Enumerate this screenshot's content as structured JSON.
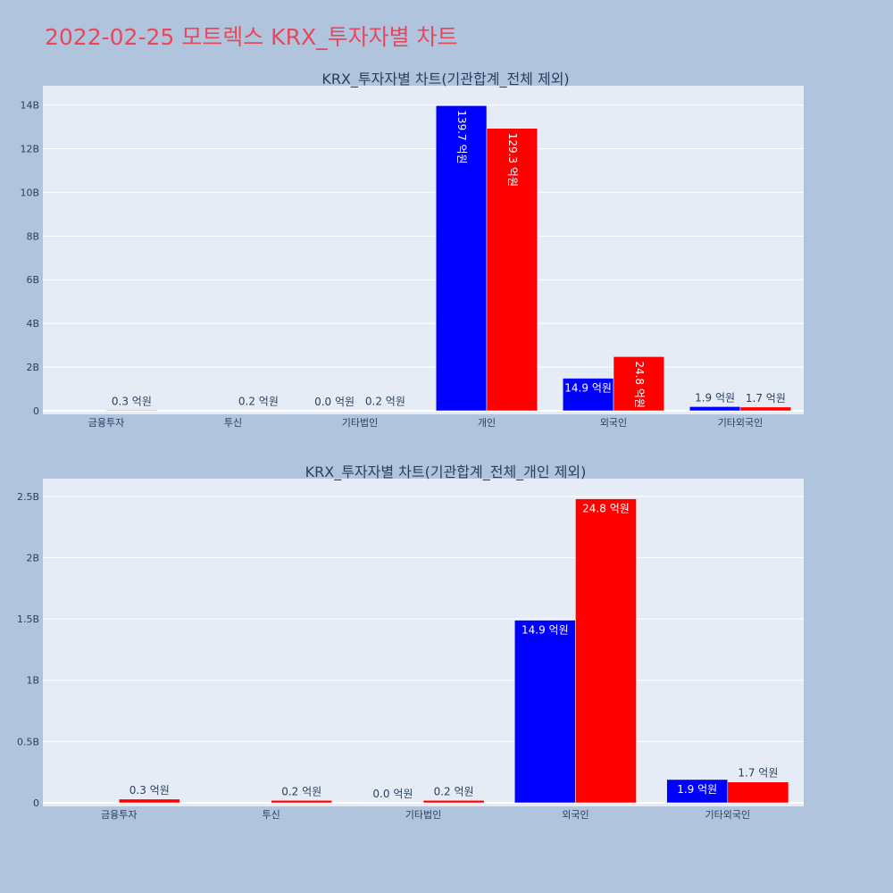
{
  "page": {
    "title": "2022-02-25 모트렉스 KRX_투자자별 차트",
    "background": "#b0c4de",
    "title_color": "#e8485c"
  },
  "chart_data": [
    {
      "type": "bar",
      "title": "KRX_투자자별 차트(기관합계_전체 제외)",
      "categories": [
        "금융투자",
        "투신",
        "기타법인",
        "개인",
        "외국인",
        "기타외국인"
      ],
      "series": [
        {
          "color": "#0000ff",
          "values": [
            0.0,
            0.0,
            0.001,
            13.97,
            1.49,
            0.19
          ],
          "labels": [
            "",
            "",
            "0.0 억원",
            "139.7 억원",
            "14.9 억원",
            "1.9 억원"
          ]
        },
        {
          "color": "#ff0000",
          "values": [
            0.03,
            0.02,
            0.02,
            12.93,
            2.48,
            0.17
          ],
          "labels": [
            "0.3 억원",
            "0.2 억원",
            "0.2 억원",
            "129.3 억원",
            "24.8 억원",
            "1.7 억원"
          ]
        }
      ],
      "ylim": [
        0,
        14.8
      ],
      "yticks": [
        0,
        2,
        4,
        6,
        8,
        10,
        12,
        14
      ],
      "ytick_labels": [
        "0",
        "2B",
        "4B",
        "6B",
        "8B",
        "10B",
        "12B",
        "14B"
      ],
      "grid": true,
      "legend": false
    },
    {
      "type": "bar",
      "title": "KRX_투자자별 차트(기관합계_전체_개인 제외)",
      "categories": [
        "금융투자",
        "투신",
        "기타법인",
        "외국인",
        "기타외국인"
      ],
      "series": [
        {
          "color": "#0000ff",
          "values": [
            0.0,
            0.0,
            0.001,
            1.49,
            0.19
          ],
          "labels": [
            "",
            "",
            "0.0 억원",
            "14.9 억원",
            "1.9 억원"
          ]
        },
        {
          "color": "#ff0000",
          "values": [
            0.03,
            0.02,
            0.02,
            2.48,
            0.17
          ],
          "labels": [
            "0.3 억원",
            "0.2 억원",
            "0.2 억원",
            "24.8 억원",
            "1.7 억원"
          ]
        }
      ],
      "ylim": [
        0,
        2.63
      ],
      "yticks": [
        0,
        0.5,
        1,
        1.5,
        2,
        2.5
      ],
      "ytick_labels": [
        "0",
        "0.5B",
        "1B",
        "1.5B",
        "2B",
        "2.5B"
      ],
      "grid": true,
      "legend": false
    }
  ]
}
